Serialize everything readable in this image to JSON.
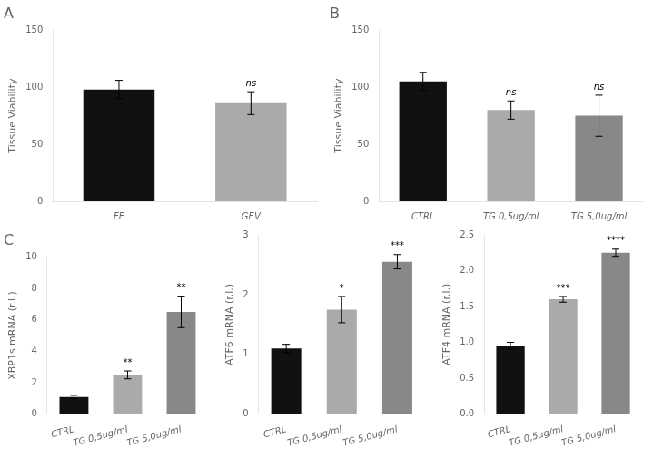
{
  "chart_data": [
    {
      "type": "bar",
      "title": "A",
      "categories": [
        "FE",
        "GEV"
      ],
      "values": [
        98,
        86
      ],
      "errors": [
        8,
        10
      ],
      "colors": [
        "#111111",
        "#aaaaaa"
      ],
      "ylabel": "Tissue Viability",
      "ylim": [
        0,
        150
      ],
      "yticks": [
        0,
        50,
        100,
        150
      ],
      "annotations": [
        {
          "category": "GEV",
          "text": "ns"
        }
      ],
      "grid": false
    },
    {
      "type": "bar",
      "title": "B",
      "categories": [
        "CTRL",
        "TG 0,5ug/ml",
        "TG 5,0ug/ml"
      ],
      "values": [
        105,
        80,
        75
      ],
      "errors": [
        8,
        8,
        18
      ],
      "colors": [
        "#111111",
        "#aaaaaa",
        "#888888"
      ],
      "ylabel": "Tissue Viability",
      "ylim": [
        0,
        150
      ],
      "yticks": [
        0,
        50,
        100,
        150
      ],
      "annotations": [
        {
          "category": "TG 0,5ug/ml",
          "text": "ns"
        },
        {
          "category": "TG 5,0ug/ml",
          "text": "ns"
        }
      ],
      "grid": false
    },
    {
      "type": "bar",
      "title": "C",
      "categories": [
        "CTRL",
        "TG 0,5ug/ml",
        "TG 5,0ug/ml"
      ],
      "values": [
        1.1,
        2.5,
        6.5
      ],
      "errors": [
        0.1,
        0.25,
        1.0
      ],
      "colors": [
        "#111111",
        "#aaaaaa",
        "#888888"
      ],
      "ylabel": "XBP1s mRNA (r.l.)",
      "ylim": [
        0,
        10
      ],
      "yticks": [
        0,
        2,
        4,
        6,
        8,
        10
      ],
      "annotations": [
        {
          "category": "TG 0,5ug/ml",
          "text": "**"
        },
        {
          "category": "TG 5,0ug/ml",
          "text": "**"
        }
      ],
      "grid": false
    },
    {
      "type": "bar",
      "categories": [
        "CTRL",
        "TG 0,5ug/ml",
        "TG 5,0ug/ml"
      ],
      "values": [
        1.1,
        1.75,
        2.55
      ],
      "errors": [
        0.07,
        0.22,
        0.12
      ],
      "colors": [
        "#111111",
        "#aaaaaa",
        "#888888"
      ],
      "ylabel": "ATF6 mRNA (r.l.)",
      "ylim": [
        0,
        3
      ],
      "yticks": [
        0,
        1,
        2,
        3
      ],
      "annotations": [
        {
          "category": "TG 0,5ug/ml",
          "text": "*"
        },
        {
          "category": "TG 5,0ug/ml",
          "text": "***"
        }
      ],
      "grid": false
    },
    {
      "type": "bar",
      "categories": [
        "CTRL",
        "TG 0,5ug/ml",
        "TG 5,0ug/ml"
      ],
      "values": [
        0.95,
        1.6,
        2.25
      ],
      "errors": [
        0.05,
        0.04,
        0.05
      ],
      "colors": [
        "#111111",
        "#aaaaaa",
        "#888888"
      ],
      "ylabel": "ATF4 mRNA (r.l.)",
      "ylim": [
        0,
        2.5
      ],
      "yticks": [
        {
          "value": 0,
          "label": "0.0"
        },
        0.5,
        {
          "value": 1,
          "label": "1.0"
        },
        1.5,
        {
          "value": 2,
          "label": "2.0"
        },
        2.5
      ],
      "annotations": [
        {
          "category": "TG 0,5ug/ml",
          "text": "***"
        },
        {
          "category": "TG 5,0ug/ml",
          "text": "****"
        }
      ],
      "grid": false
    }
  ]
}
